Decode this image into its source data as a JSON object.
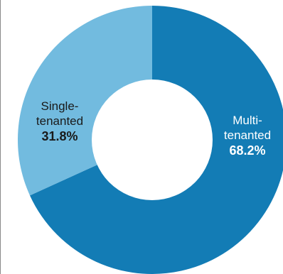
{
  "chart_data": {
    "type": "pie",
    "variant": "donut",
    "slices": [
      {
        "name_lines": [
          "Multi-",
          "tenanted"
        ],
        "name": "Multi-tenanted",
        "value": 68.2,
        "pct_label": "68.2%",
        "color": "#137cb5",
        "label_color": "#ffffff"
      },
      {
        "name_lines": [
          "Single-",
          "tenanted"
        ],
        "name": "Single-tenanted",
        "value": 31.8,
        "pct_label": "31.8%",
        "color": "#72bbdf",
        "label_color": "#1a1a1a"
      }
    ],
    "start": "top",
    "direction": "clockwise"
  }
}
